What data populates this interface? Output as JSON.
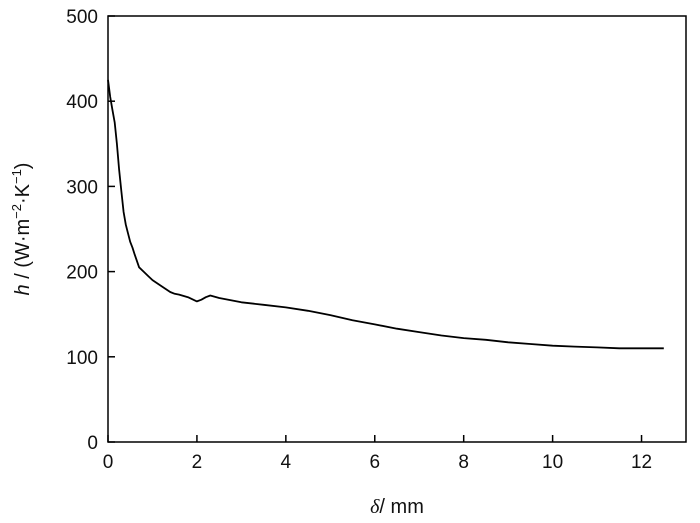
{
  "chart_data": {
    "type": "line",
    "title": "",
    "xlabel": {
      "var": "δ",
      "rest": "/ mm"
    },
    "ylabel": {
      "var": "h",
      "prefix": " / (W·m",
      "sup1": "−2",
      "mid": "·K",
      "sup2": "−1",
      "suffix": ")"
    },
    "xlim": [
      0,
      13
    ],
    "ylim": [
      0,
      500
    ],
    "xticks": [
      0,
      2,
      4,
      6,
      8,
      10,
      12
    ],
    "yticks": [
      0,
      100,
      200,
      300,
      400,
      500
    ],
    "grid": false,
    "legend": "none",
    "line_color": "#000000",
    "series": [
      {
        "x": [
          0.0,
          0.05,
          0.1,
          0.15,
          0.2,
          0.25,
          0.3,
          0.35,
          0.4,
          0.45,
          0.5,
          0.55,
          0.6,
          0.7,
          0.8,
          0.9,
          1.0,
          1.2,
          1.4,
          1.5,
          1.6,
          1.8,
          2.0,
          2.1,
          2.2,
          2.3,
          2.5,
          3.0,
          3.5,
          4.0,
          4.5,
          5.0,
          5.5,
          6.0,
          6.5,
          7.0,
          7.5,
          8.0,
          8.5,
          9.0,
          9.5,
          10.0,
          10.5,
          11.0,
          11.5,
          12.0,
          12.5
        ],
        "y": [
          425,
          405,
          390,
          375,
          350,
          320,
          295,
          270,
          255,
          245,
          235,
          228,
          220,
          205,
          200,
          195,
          190,
          183,
          176,
          174,
          173,
          170,
          165,
          167,
          170,
          172,
          169,
          164,
          161,
          158,
          154,
          149,
          143,
          138,
          133,
          129,
          125,
          122,
          120,
          117,
          115,
          113,
          112,
          111,
          110,
          110,
          110
        ]
      }
    ]
  }
}
